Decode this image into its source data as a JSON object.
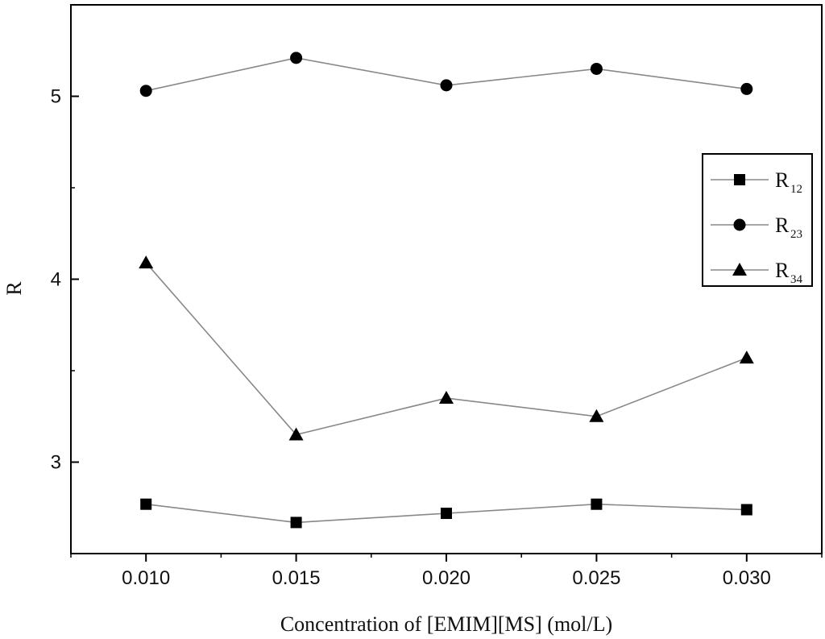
{
  "chart_data": {
    "type": "line",
    "xlabel": "Concentration of [EMIM][MS] (mol/L)",
    "ylabel": "R",
    "x": [
      0.01,
      0.015,
      0.02,
      0.025,
      0.03
    ],
    "x_tick_labels": [
      "0.010",
      "0.015",
      "0.020",
      "0.025",
      "0.030"
    ],
    "xlim": [
      0.0075,
      0.0325
    ],
    "y_ticks": [
      3,
      4,
      5
    ],
    "y_tick_labels": [
      "3",
      "4",
      "5"
    ],
    "ylim": [
      2.5,
      5.5
    ],
    "grid": false,
    "legend_position": "right",
    "series": [
      {
        "name": "R",
        "subscript": "12",
        "marker": "square",
        "color": "#000000",
        "line_color": "#888888",
        "values": [
          2.77,
          2.67,
          2.72,
          2.77,
          2.74
        ]
      },
      {
        "name": "R",
        "subscript": "23",
        "marker": "circle",
        "color": "#000000",
        "line_color": "#888888",
        "values": [
          5.03,
          5.21,
          5.06,
          5.15,
          5.04
        ]
      },
      {
        "name": "R",
        "subscript": "34",
        "marker": "triangle",
        "color": "#000000",
        "line_color": "#888888",
        "values": [
          4.09,
          3.15,
          3.35,
          3.25,
          3.57
        ]
      }
    ]
  }
}
